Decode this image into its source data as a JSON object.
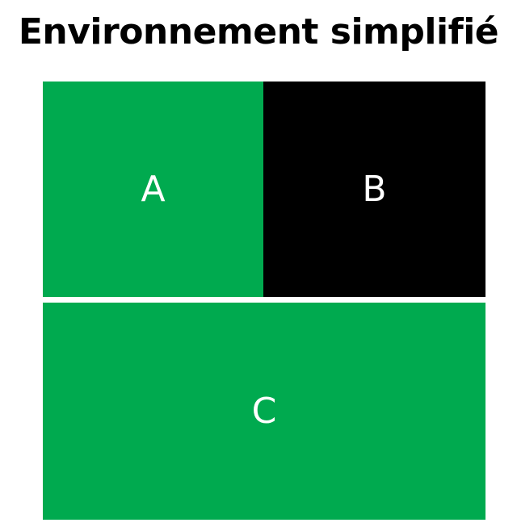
{
  "title": "Environnement simplifié",
  "zones": [
    {
      "label": "A",
      "color": "#00AA4F"
    },
    {
      "label": "B",
      "color": "#000000"
    },
    {
      "label": "C",
      "color": "#00AA4F"
    }
  ]
}
